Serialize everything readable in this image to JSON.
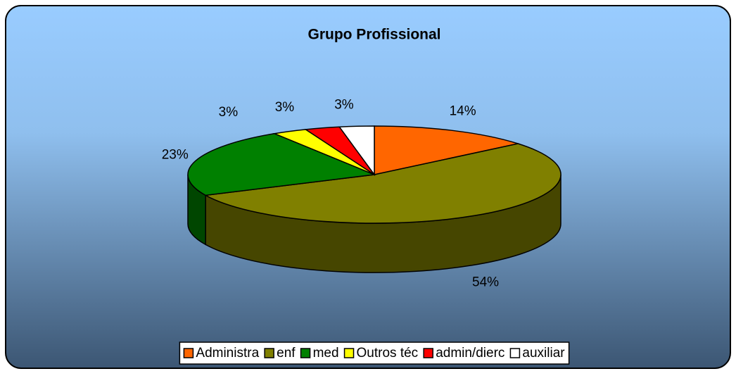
{
  "chart_data": {
    "type": "pie",
    "title": "Grupo Profissional",
    "categories": [
      "Administra",
      "enf",
      "med",
      "Outros téc",
      "admin/dierc",
      "auxiliar"
    ],
    "values": [
      14,
      54,
      23,
      3,
      3,
      3
    ],
    "value_labels": [
      "14%",
      "54%",
      "23%",
      "3%",
      "3%",
      "3%"
    ],
    "colors": [
      "#ff6600",
      "#808000",
      "#008000",
      "#ffff00",
      "#ff0000",
      "#ffffff"
    ],
    "legend": "bottom"
  }
}
